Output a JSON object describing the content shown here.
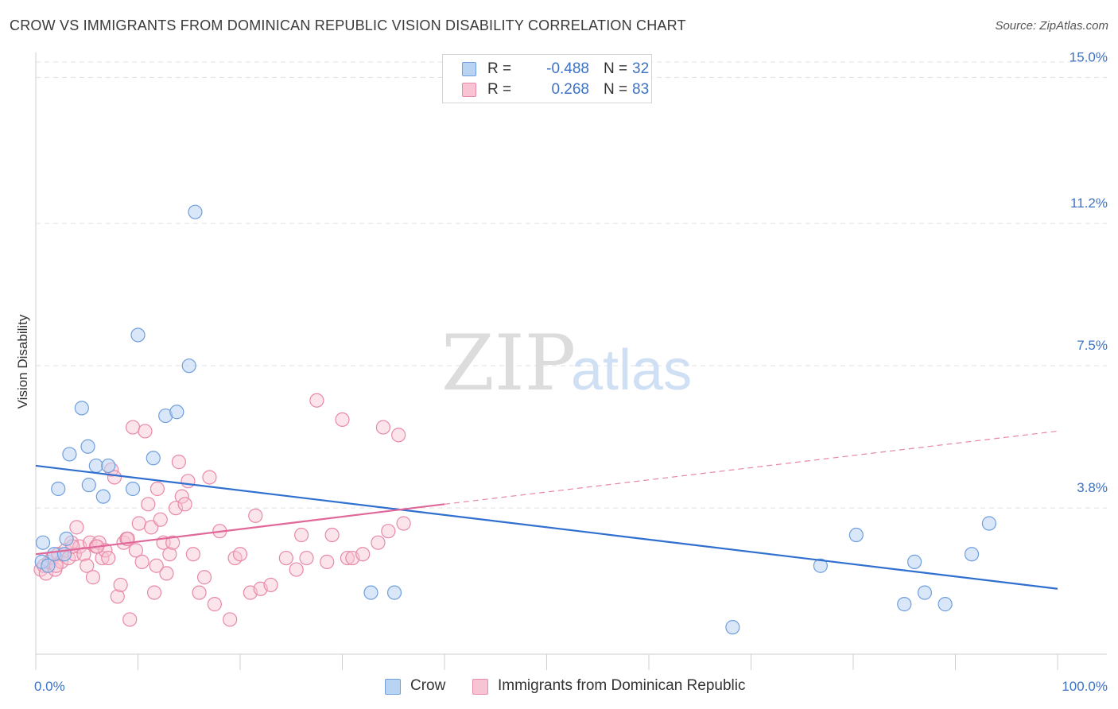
{
  "title": "CROW VS IMMIGRANTS FROM DOMINICAN REPUBLIC VISION DISABILITY CORRELATION CHART",
  "source": "Source: ZipAtlas.com",
  "watermark": {
    "zip": "ZIP",
    "atlas": "atlas"
  },
  "legend": {
    "crow": {
      "r_label": "R =",
      "r_value": "-0.488",
      "n_label": "N =",
      "n_value": "32"
    },
    "dominican": {
      "r_label": "R =",
      "r_value": "0.268",
      "n_label": "N =",
      "n_value": "83"
    }
  },
  "bottom_legend": {
    "crow": "Crow",
    "dominican": "Immigrants from Dominican Republic"
  },
  "colors": {
    "crow_fill": "#b9d3f3",
    "crow_stroke": "#6f9fdd",
    "crow_line": "#2f6fcf",
    "dom_fill": "#f8c3d3",
    "dom_stroke": "#e889a8",
    "dom_line": "#e0679a",
    "grid": "#e0e0e0",
    "axis_text": "#3d72c4"
  },
  "chart_data": {
    "type": "scatter",
    "xlabel": "",
    "ylabel": "Vision Disability",
    "xlim": [
      0,
      100
    ],
    "ylim": [
      0,
      15.4
    ],
    "x_tick_labels": [
      {
        "value": 0,
        "label": "0.0%"
      },
      {
        "value": 100,
        "label": "100.0%"
      }
    ],
    "y_ticks": [
      {
        "value": 3.8,
        "label": "3.8%"
      },
      {
        "value": 7.5,
        "label": "7.5%"
      },
      {
        "value": 11.2,
        "label": "11.2%"
      },
      {
        "value": 15.0,
        "label": "15.0%"
      }
    ],
    "series": [
      {
        "name": "Crow",
        "points": [
          [
            0.6,
            2.4
          ],
          [
            0.7,
            2.9
          ],
          [
            1.8,
            2.6
          ],
          [
            2.2,
            4.3
          ],
          [
            2.8,
            2.6
          ],
          [
            3.0,
            3.0
          ],
          [
            3.3,
            5.2
          ],
          [
            4.5,
            6.4
          ],
          [
            5.1,
            5.4
          ],
          [
            5.2,
            4.4
          ],
          [
            5.9,
            4.9
          ],
          [
            6.6,
            4.1
          ],
          [
            7.1,
            4.9
          ],
          [
            9.5,
            4.3
          ],
          [
            10.0,
            8.3
          ],
          [
            11.5,
            5.1
          ],
          [
            12.7,
            6.2
          ],
          [
            13.8,
            6.3
          ],
          [
            15.0,
            7.5
          ],
          [
            15.6,
            11.5
          ],
          [
            32.8,
            1.6
          ],
          [
            35.1,
            1.6
          ],
          [
            68.2,
            0.7
          ],
          [
            76.8,
            2.3
          ],
          [
            80.3,
            3.1
          ],
          [
            85.0,
            1.3
          ],
          [
            86.0,
            2.4
          ],
          [
            87.0,
            1.6
          ],
          [
            89.0,
            1.3
          ],
          [
            91.6,
            2.6
          ],
          [
            93.3,
            3.4
          ],
          [
            1.2,
            2.3
          ]
        ],
        "trend": {
          "x0": 0,
          "y0": 4.9,
          "x1": 100,
          "y1": 1.7
        }
      },
      {
        "name": "Immigrants from Dominican Republic",
        "points": [
          [
            0.5,
            2.2
          ],
          [
            0.8,
            2.3
          ],
          [
            1.0,
            2.1
          ],
          [
            1.3,
            2.4
          ],
          [
            1.6,
            2.5
          ],
          [
            1.9,
            2.2
          ],
          [
            2.2,
            2.6
          ],
          [
            2.5,
            2.4
          ],
          [
            2.9,
            2.7
          ],
          [
            3.2,
            2.5
          ],
          [
            3.5,
            2.9
          ],
          [
            3.8,
            2.6
          ],
          [
            4.0,
            3.3
          ],
          [
            4.3,
            2.8
          ],
          [
            4.7,
            2.6
          ],
          [
            5.0,
            2.3
          ],
          [
            5.3,
            2.9
          ],
          [
            5.6,
            2.0
          ],
          [
            5.9,
            2.8
          ],
          [
            6.2,
            2.9
          ],
          [
            6.5,
            2.5
          ],
          [
            6.8,
            2.7
          ],
          [
            7.1,
            2.5
          ],
          [
            7.4,
            4.8
          ],
          [
            7.7,
            4.6
          ],
          [
            8.0,
            1.5
          ],
          [
            8.3,
            1.8
          ],
          [
            8.6,
            2.9
          ],
          [
            8.9,
            3.0
          ],
          [
            9.2,
            0.9
          ],
          [
            9.5,
            5.9
          ],
          [
            9.8,
            2.7
          ],
          [
            10.1,
            3.4
          ],
          [
            10.4,
            2.4
          ],
          [
            10.7,
            5.8
          ],
          [
            11.0,
            3.9
          ],
          [
            11.3,
            3.3
          ],
          [
            11.6,
            1.6
          ],
          [
            11.9,
            4.3
          ],
          [
            12.2,
            3.5
          ],
          [
            12.5,
            2.9
          ],
          [
            12.8,
            2.1
          ],
          [
            13.1,
            2.6
          ],
          [
            13.4,
            2.9
          ],
          [
            13.7,
            3.8
          ],
          [
            14.0,
            5.0
          ],
          [
            14.3,
            4.1
          ],
          [
            14.6,
            3.9
          ],
          [
            14.9,
            4.5
          ],
          [
            16.0,
            1.6
          ],
          [
            16.5,
            2.0
          ],
          [
            17.0,
            4.6
          ],
          [
            17.5,
            1.3
          ],
          [
            18.0,
            3.2
          ],
          [
            19.0,
            0.9
          ],
          [
            19.5,
            2.5
          ],
          [
            20.0,
            2.6
          ],
          [
            21.0,
            1.6
          ],
          [
            21.5,
            3.6
          ],
          [
            22.0,
            1.7
          ],
          [
            23.0,
            1.8
          ],
          [
            24.5,
            2.5
          ],
          [
            25.5,
            2.2
          ],
          [
            26.0,
            3.1
          ],
          [
            26.5,
            2.5
          ],
          [
            27.5,
            6.6
          ],
          [
            28.5,
            2.4
          ],
          [
            29.0,
            3.1
          ],
          [
            30.0,
            6.1
          ],
          [
            30.5,
            2.5
          ],
          [
            31.0,
            2.5
          ],
          [
            32.0,
            2.6
          ],
          [
            33.5,
            2.9
          ],
          [
            34.0,
            5.9
          ],
          [
            34.5,
            3.2
          ],
          [
            35.5,
            5.7
          ],
          [
            36.0,
            3.4
          ],
          [
            2.0,
            2.3
          ],
          [
            3.6,
            2.8
          ],
          [
            6.0,
            2.8
          ],
          [
            15.4,
            2.6
          ],
          [
            11.8,
            2.3
          ],
          [
            9.0,
            3.0
          ]
        ],
        "trend": {
          "x0": 0,
          "y0": 2.6,
          "x1": 40,
          "y1": 3.9
        },
        "trend_dashed": {
          "x0": 40,
          "y0": 3.9,
          "x1": 100,
          "y1": 5.8
        }
      }
    ]
  }
}
